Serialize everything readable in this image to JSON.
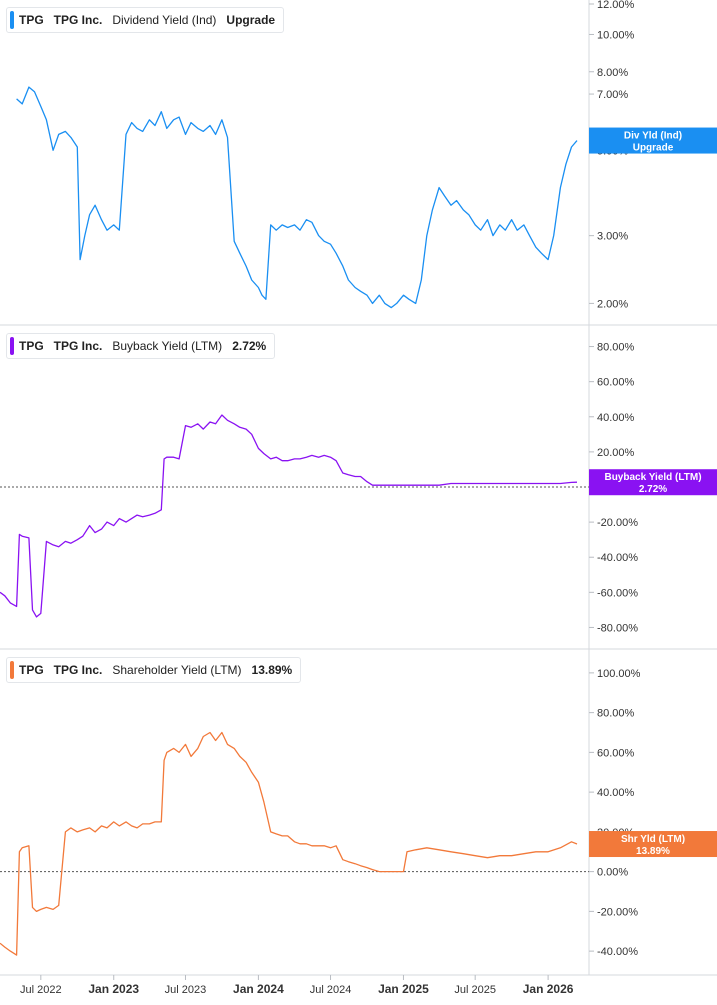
{
  "theme": {
    "dividend_color": "#1a8ff2",
    "buyback_color": "#8a12f2",
    "shareholder_color": "#f2793a",
    "grid_color": "#cfd3d8",
    "text_color": "#333333"
  },
  "x_axis": {
    "labels": [
      {
        "text": "Jul 2022",
        "date": "2022-07-01",
        "bold": false
      },
      {
        "text": "Jan 2023",
        "date": "2023-01-01",
        "bold": true
      },
      {
        "text": "Jul 2023",
        "date": "2023-07-01",
        "bold": false
      },
      {
        "text": "Jan 2024",
        "date": "2024-01-01",
        "bold": true
      },
      {
        "text": "Jul 2024",
        "date": "2024-07-01",
        "bold": false
      },
      {
        "text": "Jan 2025",
        "date": "2025-01-01",
        "bold": true
      },
      {
        "text": "Jul 2025",
        "date": "2025-07-01",
        "bold": false
      },
      {
        "text": "Jan 2026",
        "date": "2026-01-01",
        "bold": true
      }
    ]
  },
  "panels": [
    {
      "ticker": "TPG",
      "company": "TPG Inc.",
      "metric": "Dividend Yield (Ind)",
      "value": "Upgrade",
      "tag_line1": "Div Yld (Ind)",
      "tag_line2": "Upgrade",
      "color_key": "dividend_color"
    },
    {
      "ticker": "TPG",
      "company": "TPG Inc.",
      "metric": "Buyback Yield (LTM)",
      "value": "2.72%",
      "tag_line1": "Buyback Yield (LTM)",
      "tag_line2": "2.72%",
      "color_key": "buyback_color"
    },
    {
      "ticker": "TPG",
      "company": "TPG Inc.",
      "metric": "Shareholder Yield (LTM)",
      "value": "13.89%",
      "tag_line1": "Shr Yld (LTM)",
      "tag_line2": "13.89%",
      "color_key": "shareholder_color"
    }
  ],
  "chart_data": [
    {
      "type": "line",
      "series": [
        {
          "name": "Dividend Yield (Ind)",
          "color": "#1a8ff2",
          "x": [
            "2022-05-01",
            "2022-05-15",
            "2022-06-01",
            "2022-06-15",
            "2022-07-01",
            "2022-07-15",
            "2022-08-01",
            "2022-08-15",
            "2022-09-01",
            "2022-09-15",
            "2022-10-01",
            "2022-10-08",
            "2022-10-20",
            "2022-11-01",
            "2022-11-15",
            "2022-12-01",
            "2022-12-15",
            "2023-01-01",
            "2023-01-15",
            "2023-02-01",
            "2023-02-15",
            "2023-03-01",
            "2023-03-15",
            "2023-04-01",
            "2023-04-15",
            "2023-05-01",
            "2023-05-15",
            "2023-06-01",
            "2023-06-15",
            "2023-07-01",
            "2023-07-15",
            "2023-08-01",
            "2023-08-15",
            "2023-09-01",
            "2023-09-15",
            "2023-10-01",
            "2023-10-15",
            "2023-11-01",
            "2023-11-15",
            "2023-12-01",
            "2023-12-15",
            "2024-01-01",
            "2024-01-10",
            "2024-01-20",
            "2024-02-01",
            "2024-02-15",
            "2024-03-01",
            "2024-03-15",
            "2024-04-01",
            "2024-04-15",
            "2024-05-01",
            "2024-05-15",
            "2024-06-01",
            "2024-06-15",
            "2024-07-01",
            "2024-07-15",
            "2024-08-01",
            "2024-08-15",
            "2024-09-01",
            "2024-09-15",
            "2024-10-01",
            "2024-10-15",
            "2024-11-01",
            "2024-11-15",
            "2024-12-01",
            "2024-12-15",
            "2025-01-01",
            "2025-01-15",
            "2025-02-01",
            "2025-02-15",
            "2025-03-01",
            "2025-03-15",
            "2025-04-01",
            "2025-04-15",
            "2025-05-01",
            "2025-05-15",
            "2025-06-01",
            "2025-06-15",
            "2025-07-01",
            "2025-07-15",
            "2025-08-01",
            "2025-08-15",
            "2025-09-01",
            "2025-09-15",
            "2025-10-01",
            "2025-10-15",
            "2025-11-01",
            "2025-11-15",
            "2025-12-01",
            "2025-12-15",
            "2026-01-01",
            "2026-01-15",
            "2026-02-01",
            "2026-02-15",
            "2026-03-01",
            "2026-03-15"
          ],
          "y": [
            6.8,
            6.6,
            7.3,
            7.1,
            6.5,
            6.0,
            5.0,
            5.5,
            5.6,
            5.4,
            5.1,
            2.6,
            3.0,
            3.4,
            3.6,
            3.3,
            3.1,
            3.2,
            3.1,
            5.5,
            5.9,
            5.7,
            5.6,
            6.0,
            5.8,
            6.3,
            5.7,
            6.0,
            6.1,
            5.5,
            5.9,
            5.7,
            5.6,
            5.8,
            5.5,
            6.0,
            5.4,
            2.9,
            2.7,
            2.5,
            2.3,
            2.2,
            2.1,
            2.05,
            3.2,
            3.1,
            3.2,
            3.15,
            3.2,
            3.1,
            3.3,
            3.25,
            3.0,
            2.9,
            2.85,
            2.7,
            2.5,
            2.3,
            2.2,
            2.15,
            2.1,
            2.0,
            2.1,
            2.0,
            1.95,
            2.0,
            2.1,
            2.05,
            2.0,
            2.3,
            3.0,
            3.5,
            4.0,
            3.8,
            3.6,
            3.7,
            3.5,
            3.4,
            3.2,
            3.1,
            3.3,
            3.0,
            3.2,
            3.1,
            3.3,
            3.1,
            3.2,
            3.0,
            2.8,
            2.7,
            2.6,
            3.0,
            4.0,
            4.6,
            5.1,
            5.3
          ]
        }
      ],
      "y_scale": "log",
      "ylim": [
        1.8,
        12
      ],
      "y_ticks": [
        "2.00%",
        "3.00%",
        "5.00%",
        "7.00%",
        "8.00%",
        "10.00%",
        "12.00%"
      ],
      "y_tick_values": [
        2,
        3,
        5,
        7,
        8,
        10,
        12
      ]
    },
    {
      "type": "line",
      "series": [
        {
          "name": "Buyback Yield (LTM)",
          "color": "#8a12f2",
          "x": [
            "2022-03-20",
            "2022-04-01",
            "2022-04-15",
            "2022-05-01",
            "2022-05-08",
            "2022-05-15",
            "2022-06-01",
            "2022-06-10",
            "2022-06-20",
            "2022-07-01",
            "2022-07-15",
            "2022-08-01",
            "2022-08-15",
            "2022-09-01",
            "2022-09-15",
            "2022-10-01",
            "2022-10-15",
            "2022-11-01",
            "2022-11-15",
            "2022-12-01",
            "2022-12-15",
            "2023-01-01",
            "2023-01-15",
            "2023-02-01",
            "2023-02-15",
            "2023-03-01",
            "2023-03-15",
            "2023-04-01",
            "2023-04-15",
            "2023-05-01",
            "2023-05-08",
            "2023-05-15",
            "2023-06-01",
            "2023-06-15",
            "2023-07-01",
            "2023-07-15",
            "2023-08-01",
            "2023-08-15",
            "2023-09-01",
            "2023-09-15",
            "2023-10-01",
            "2023-10-15",
            "2023-11-01",
            "2023-11-15",
            "2023-12-01",
            "2023-12-15",
            "2024-01-01",
            "2024-01-15",
            "2024-02-01",
            "2024-02-15",
            "2024-03-01",
            "2024-03-15",
            "2024-04-01",
            "2024-04-15",
            "2024-05-01",
            "2024-05-15",
            "2024-06-01",
            "2024-06-15",
            "2024-07-01",
            "2024-07-15",
            "2024-08-01",
            "2024-08-15",
            "2024-09-01",
            "2024-09-15",
            "2024-10-01",
            "2024-10-15",
            "2024-11-01",
            "2024-12-01",
            "2025-01-01",
            "2025-02-01",
            "2025-03-01",
            "2025-04-01",
            "2025-05-01",
            "2025-06-01",
            "2025-07-01",
            "2025-08-01",
            "2025-09-01",
            "2025-10-01",
            "2025-11-01",
            "2025-12-01",
            "2026-01-01",
            "2026-02-01",
            "2026-03-01",
            "2026-03-15"
          ],
          "y": [
            -60,
            -62,
            -66,
            -68,
            -27,
            -28,
            -29,
            -70,
            -74,
            -72,
            -31,
            -33,
            -34,
            -31,
            -32,
            -30,
            -28,
            -22,
            -26,
            -24,
            -20,
            -22,
            -18,
            -20,
            -18,
            -16,
            -17,
            -16,
            -15,
            -13,
            16,
            17,
            17,
            16,
            35,
            34,
            36,
            33,
            37,
            36,
            41,
            38,
            36,
            34,
            33,
            30,
            22,
            19,
            16,
            17,
            15,
            15,
            16,
            16,
            17,
            18,
            17,
            18,
            17,
            15,
            8,
            7,
            6,
            6,
            3,
            1,
            1,
            1,
            1,
            1,
            1,
            1,
            2,
            2,
            2,
            2,
            2,
            2,
            2,
            2,
            2,
            2,
            2.6,
            2.72
          ]
        }
      ],
      "y_scale": "linear",
      "ylim": [
        -90,
        90
      ],
      "y_ticks": [
        "-80.00%",
        "-60.00%",
        "-40.00%",
        "-20.00%",
        "0.00%",
        "20.00%",
        "40.00%",
        "60.00%",
        "80.00%"
      ],
      "y_tick_values": [
        -80,
        -60,
        -40,
        -20,
        0,
        20,
        40,
        60,
        80
      ]
    },
    {
      "type": "line",
      "series": [
        {
          "name": "Shareholder Yield (LTM)",
          "color": "#f2793a",
          "x": [
            "2022-03-20",
            "2022-04-01",
            "2022-04-15",
            "2022-05-01",
            "2022-05-08",
            "2022-05-15",
            "2022-06-01",
            "2022-06-10",
            "2022-06-20",
            "2022-07-01",
            "2022-07-15",
            "2022-08-01",
            "2022-08-15",
            "2022-09-01",
            "2022-09-15",
            "2022-10-01",
            "2022-10-15",
            "2022-11-01",
            "2022-11-15",
            "2022-12-01",
            "2022-12-15",
            "2023-01-01",
            "2023-01-15",
            "2023-02-01",
            "2023-02-15",
            "2023-03-01",
            "2023-03-15",
            "2023-04-01",
            "2023-04-15",
            "2023-05-01",
            "2023-05-08",
            "2023-05-15",
            "2023-06-01",
            "2023-06-15",
            "2023-07-01",
            "2023-07-15",
            "2023-08-01",
            "2023-08-15",
            "2023-09-01",
            "2023-09-15",
            "2023-10-01",
            "2023-10-15",
            "2023-11-01",
            "2023-11-15",
            "2023-12-01",
            "2023-12-15",
            "2024-01-01",
            "2024-01-15",
            "2024-02-01",
            "2024-02-15",
            "2024-03-01",
            "2024-03-15",
            "2024-04-01",
            "2024-04-15",
            "2024-05-01",
            "2024-05-15",
            "2024-06-01",
            "2024-06-15",
            "2024-07-01",
            "2024-07-15",
            "2024-08-01",
            "2024-08-15",
            "2024-09-01",
            "2024-09-15",
            "2024-10-01",
            "2024-10-15",
            "2024-11-01",
            "2024-12-01",
            "2025-01-01",
            "2025-01-10",
            "2025-02-01",
            "2025-03-01",
            "2025-04-01",
            "2025-05-01",
            "2025-06-01",
            "2025-07-01",
            "2025-08-01",
            "2025-09-01",
            "2025-10-01",
            "2025-11-01",
            "2025-12-01",
            "2026-01-01",
            "2026-02-01",
            "2026-03-01",
            "2026-03-15"
          ],
          "y": [
            -36,
            -38,
            -40,
            -42,
            10,
            12,
            13,
            -18,
            -20,
            -19,
            -18,
            -19,
            -17,
            20,
            22,
            20,
            21,
            22,
            20,
            23,
            22,
            25,
            23,
            25,
            23,
            22,
            24,
            24,
            25,
            25,
            56,
            60,
            62,
            60,
            64,
            58,
            62,
            68,
            70,
            66,
            70,
            64,
            62,
            58,
            55,
            50,
            45,
            35,
            20,
            19,
            18,
            18,
            15,
            14,
            14,
            13,
            13,
            13,
            12,
            13,
            6,
            5,
            4,
            3,
            2,
            1,
            0,
            0,
            0,
            10,
            11,
            12,
            11,
            10,
            9,
            8,
            7,
            8,
            8,
            9,
            10,
            10,
            12,
            15,
            13.89
          ]
        }
      ],
      "y_scale": "linear",
      "ylim": [
        -50,
        110
      ],
      "y_ticks": [
        "-40.00%",
        "-20.00%",
        "0.00%",
        "20.00%",
        "40.00%",
        "60.00%",
        "80.00%",
        "100.00%"
      ],
      "y_tick_values": [
        -40,
        -20,
        0,
        20,
        40,
        60,
        80,
        100
      ]
    }
  ]
}
